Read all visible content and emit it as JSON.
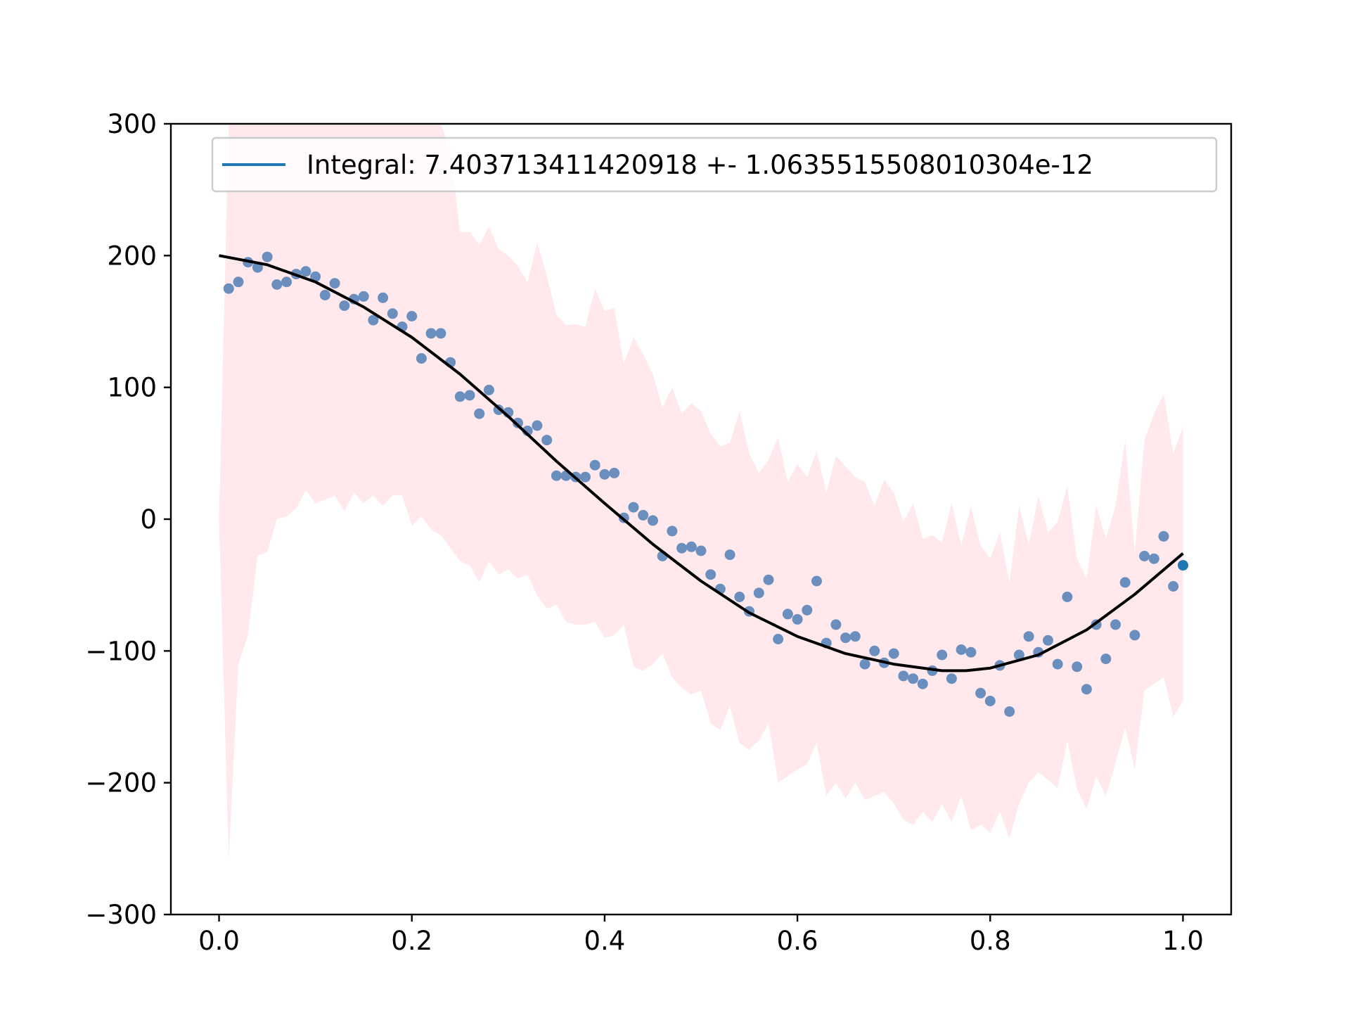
{
  "chart_data": {
    "type": "scatter",
    "title": "",
    "xlabel": "",
    "ylabel": "",
    "xlim": [
      -0.05,
      1.05
    ],
    "ylim": [
      -300,
      300
    ],
    "xticks": [
      0.0,
      0.2,
      0.4,
      0.6,
      0.8,
      1.0
    ],
    "xtick_labels": [
      "0.0",
      "0.2",
      "0.4",
      "0.6",
      "0.8",
      "1.0"
    ],
    "yticks": [
      -300,
      -200,
      -100,
      0,
      100,
      200,
      300
    ],
    "ytick_labels": [
      "−300",
      "−200",
      "−100",
      "0",
      "100",
      "200",
      "300"
    ],
    "grid": false,
    "legend": {
      "placement": "top-right",
      "entries": [
        {
          "label": "Integral: 7.403713411420918 +- 1.0635515508010304e-12",
          "color": "#1f77b4"
        }
      ]
    },
    "colors": {
      "points": "#6a8fbf",
      "curve": "#000000",
      "band": "#ffc0cb",
      "last_point": "#1f77b4"
    },
    "scatter": {
      "x": [
        0.01,
        0.02,
        0.03,
        0.04,
        0.05,
        0.06,
        0.07,
        0.08,
        0.09,
        0.1,
        0.11,
        0.12,
        0.13,
        0.14,
        0.15,
        0.16,
        0.17,
        0.18,
        0.19,
        0.2,
        0.21,
        0.22,
        0.23,
        0.24,
        0.25,
        0.26,
        0.27,
        0.28,
        0.29,
        0.3,
        0.31,
        0.32,
        0.33,
        0.34,
        0.35,
        0.36,
        0.37,
        0.38,
        0.39,
        0.4,
        0.41,
        0.42,
        0.43,
        0.44,
        0.45,
        0.46,
        0.47,
        0.48,
        0.49,
        0.5,
        0.51,
        0.52,
        0.53,
        0.54,
        0.55,
        0.56,
        0.57,
        0.58,
        0.59,
        0.6,
        0.61,
        0.62,
        0.63,
        0.64,
        0.65,
        0.66,
        0.67,
        0.68,
        0.69,
        0.7,
        0.71,
        0.72,
        0.73,
        0.74,
        0.75,
        0.76,
        0.77,
        0.78,
        0.79,
        0.8,
        0.81,
        0.82,
        0.83,
        0.84,
        0.85,
        0.86,
        0.87,
        0.88,
        0.89,
        0.9,
        0.91,
        0.92,
        0.93,
        0.94,
        0.95,
        0.96,
        0.97,
        0.98,
        0.99,
        1.0
      ],
      "y": [
        175,
        180,
        195,
        191,
        199,
        178,
        180,
        186,
        188,
        184,
        170,
        179,
        162,
        167,
        169,
        151,
        168,
        156,
        146,
        154,
        122,
        141,
        141,
        119,
        93,
        94,
        80,
        98,
        83,
        81,
        73,
        67,
        71,
        60,
        33,
        33,
        32,
        32,
        41,
        34,
        35,
        1,
        9,
        3,
        -1,
        -28,
        -9,
        -22,
        -21,
        -24,
        -42,
        -53,
        -27,
        -59,
        -70,
        -56,
        -46,
        -91,
        -72,
        -76,
        -69,
        -47,
        -94,
        -80,
        -90,
        -89,
        -110,
        -100,
        -109,
        -102,
        -119,
        -121,
        -125,
        -115,
        -103,
        -121,
        -99,
        -101,
        -132,
        -138,
        -111,
        -146,
        -103,
        -89,
        -101,
        -92,
        -110,
        -59,
        -112,
        -129,
        -80,
        -106,
        -80,
        -48,
        -88,
        -28,
        -30,
        -13,
        -51,
        -35
      ]
    },
    "fit_curve": {
      "x": [
        0.0,
        0.05,
        0.1,
        0.15,
        0.2,
        0.25,
        0.3,
        0.35,
        0.4,
        0.45,
        0.5,
        0.55,
        0.6,
        0.65,
        0.7,
        0.75,
        0.775,
        0.8,
        0.85,
        0.9,
        0.95,
        1.0
      ],
      "y": [
        200,
        193,
        180,
        161,
        138,
        110,
        78,
        44,
        12,
        -19,
        -47,
        -71,
        -89,
        -102,
        -110,
        -115,
        -115,
        -113,
        -103,
        -84,
        -57,
        -26
      ]
    },
    "error_band": {
      "x": [
        0.0,
        0.01,
        0.02,
        0.03,
        0.04,
        0.05,
        0.06,
        0.07,
        0.08,
        0.09,
        0.1,
        0.11,
        0.12,
        0.13,
        0.14,
        0.15,
        0.16,
        0.17,
        0.18,
        0.19,
        0.2,
        0.21,
        0.22,
        0.23,
        0.24,
        0.25,
        0.26,
        0.27,
        0.28,
        0.29,
        0.3,
        0.31,
        0.32,
        0.33,
        0.34,
        0.35,
        0.36,
        0.37,
        0.38,
        0.39,
        0.4,
        0.41,
        0.42,
        0.43,
        0.44,
        0.45,
        0.46,
        0.47,
        0.48,
        0.49,
        0.5,
        0.51,
        0.52,
        0.53,
        0.54,
        0.55,
        0.56,
        0.57,
        0.58,
        0.59,
        0.6,
        0.61,
        0.62,
        0.63,
        0.64,
        0.65,
        0.66,
        0.67,
        0.68,
        0.69,
        0.7,
        0.71,
        0.72,
        0.73,
        0.74,
        0.75,
        0.76,
        0.77,
        0.78,
        0.79,
        0.8,
        0.81,
        0.82,
        0.83,
        0.84,
        0.85,
        0.86,
        0.87,
        0.88,
        0.89,
        0.9,
        0.91,
        0.92,
        0.93,
        0.94,
        0.95,
        0.96,
        0.97,
        0.98,
        0.99,
        1.0
      ],
      "upper": [
        0,
        300,
        300,
        300,
        300,
        300,
        300,
        300,
        300,
        300,
        300,
        300,
        300,
        300,
        300,
        300,
        300,
        300,
        300,
        300,
        300,
        300,
        300,
        300,
        280,
        218,
        218,
        208,
        222,
        205,
        200,
        192,
        180,
        210,
        185,
        155,
        147,
        148,
        146,
        175,
        158,
        160,
        118,
        138,
        125,
        110,
        85,
        100,
        80,
        88,
        82,
        65,
        55,
        58,
        82,
        50,
        35,
        45,
        62,
        28,
        42,
        32,
        52,
        20,
        48,
        40,
        32,
        28,
        10,
        30,
        20,
        -2,
        12,
        -15,
        -12,
        -18,
        12,
        -20,
        10,
        -20,
        -30,
        -10,
        -48,
        10,
        -20,
        18,
        -10,
        -2,
        25,
        -30,
        -45,
        10,
        -15,
        10,
        60,
        -25,
        60,
        80,
        95,
        50,
        70
      ],
      "lower": [
        0,
        -258,
        -110,
        -88,
        -28,
        -25,
        0,
        2,
        8,
        22,
        12,
        15,
        18,
        6,
        20,
        12,
        18,
        10,
        18,
        18,
        -5,
        2,
        -8,
        -12,
        -22,
        -32,
        -35,
        -48,
        -32,
        -42,
        -38,
        -45,
        -42,
        -58,
        -68,
        -65,
        -78,
        -80,
        -80,
        -78,
        -90,
        -88,
        -80,
        -112,
        -115,
        -110,
        -102,
        -120,
        -128,
        -133,
        -130,
        -155,
        -160,
        -142,
        -170,
        -175,
        -168,
        -155,
        -200,
        -195,
        -190,
        -186,
        -170,
        -210,
        -200,
        -212,
        -200,
        -213,
        -210,
        -207,
        -216,
        -228,
        -232,
        -222,
        -230,
        -216,
        -230,
        -210,
        -236,
        -232,
        -238,
        -222,
        -242,
        -216,
        -200,
        -192,
        -198,
        -204,
        -168,
        -205,
        -220,
        -195,
        -210,
        -185,
        -158,
        -190,
        -130,
        -125,
        -120,
        -150,
        -138
      ]
    }
  }
}
